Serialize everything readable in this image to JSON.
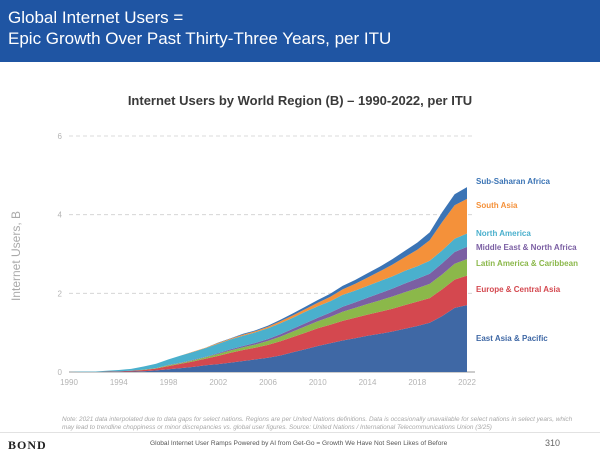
{
  "header": {
    "title_line1": "Global Internet Users =",
    "title_line2": "Epic Growth Over Past Thirty-Three Years, per ITU",
    "bg_color": "#1f55a3"
  },
  "chart_data": {
    "type": "area",
    "stacked": true,
    "title": "Internet Users by World Region (B) – 1990-2022, per ITU",
    "ylabel": "Internet Users, B",
    "xlabel": "",
    "ylim": [
      0,
      6
    ],
    "yticks": [
      0,
      2,
      4,
      6
    ],
    "xticks": [
      1990,
      1994,
      1998,
      2002,
      2006,
      2010,
      2014,
      2018,
      2022
    ],
    "grid": "horizontal dashed",
    "legend": "right, labels at series ends",
    "x": [
      1990,
      1991,
      1992,
      1993,
      1994,
      1995,
      1996,
      1997,
      1998,
      1999,
      2000,
      2001,
      2002,
      2003,
      2004,
      2005,
      2006,
      2007,
      2008,
      2009,
      2010,
      2011,
      2012,
      2013,
      2014,
      2015,
      2016,
      2017,
      2018,
      2019,
      2020,
      2021,
      2022
    ],
    "series": [
      {
        "name": "East Asia & Pacific",
        "color": "#3f68a5",
        "values": [
          0,
          0,
          0,
          0,
          0.01,
          0.01,
          0.02,
          0.04,
          0.07,
          0.1,
          0.13,
          0.17,
          0.2,
          0.24,
          0.28,
          0.32,
          0.36,
          0.42,
          0.5,
          0.58,
          0.66,
          0.73,
          0.8,
          0.86,
          0.92,
          0.97,
          1.03,
          1.1,
          1.17,
          1.25,
          1.42,
          1.63,
          1.7
        ]
      },
      {
        "name": "Europe & Central Asia",
        "color": "#d4484f",
        "values": [
          0,
          0,
          0,
          0.01,
          0.01,
          0.02,
          0.03,
          0.05,
          0.08,
          0.11,
          0.14,
          0.17,
          0.21,
          0.25,
          0.28,
          0.3,
          0.33,
          0.36,
          0.39,
          0.42,
          0.45,
          0.47,
          0.5,
          0.52,
          0.54,
          0.56,
          0.58,
          0.6,
          0.62,
          0.63,
          0.68,
          0.72,
          0.75
        ]
      },
      {
        "name": "Latin America & Caribbean",
        "color": "#8bb84a",
        "values": [
          0,
          0,
          0,
          0,
          0,
          0,
          0.01,
          0.01,
          0.02,
          0.02,
          0.03,
          0.04,
          0.05,
          0.06,
          0.07,
          0.08,
          0.1,
          0.12,
          0.14,
          0.16,
          0.18,
          0.2,
          0.23,
          0.25,
          0.27,
          0.29,
          0.31,
          0.33,
          0.34,
          0.36,
          0.38,
          0.4,
          0.42
        ]
      },
      {
        "name": "Middle East & North Africa",
        "color": "#7b5fa3",
        "values": [
          0,
          0,
          0,
          0,
          0,
          0,
          0,
          0,
          0.01,
          0.01,
          0.01,
          0.01,
          0.02,
          0.03,
          0.03,
          0.04,
          0.05,
          0.06,
          0.07,
          0.08,
          0.09,
          0.11,
          0.13,
          0.14,
          0.16,
          0.18,
          0.2,
          0.22,
          0.24,
          0.26,
          0.28,
          0.3,
          0.31
        ]
      },
      {
        "name": "North America",
        "color": "#4ab0cd",
        "values": [
          0,
          0.01,
          0.01,
          0.02,
          0.03,
          0.05,
          0.08,
          0.11,
          0.14,
          0.18,
          0.2,
          0.22,
          0.24,
          0.25,
          0.26,
          0.27,
          0.27,
          0.28,
          0.28,
          0.29,
          0.29,
          0.29,
          0.3,
          0.3,
          0.3,
          0.31,
          0.31,
          0.32,
          0.32,
          0.33,
          0.33,
          0.34,
          0.34
        ]
      },
      {
        "name": "South Asia",
        "color": "#f4913a",
        "values": [
          0,
          0,
          0,
          0,
          0,
          0,
          0,
          0,
          0,
          0,
          0.01,
          0.01,
          0.02,
          0.02,
          0.03,
          0.03,
          0.04,
          0.05,
          0.06,
          0.07,
          0.09,
          0.11,
          0.14,
          0.17,
          0.21,
          0.25,
          0.3,
          0.35,
          0.42,
          0.52,
          0.72,
          0.85,
          0.88
        ]
      },
      {
        "name": "Sub-Saharan Africa",
        "color": "#3b74b5",
        "values": [
          0,
          0,
          0,
          0,
          0,
          0,
          0,
          0,
          0,
          0,
          0,
          0,
          0.01,
          0.01,
          0.02,
          0.02,
          0.03,
          0.04,
          0.05,
          0.06,
          0.07,
          0.08,
          0.09,
          0.1,
          0.11,
          0.12,
          0.14,
          0.16,
          0.18,
          0.2,
          0.25,
          0.28,
          0.3
        ]
      }
    ]
  },
  "note": "Note: 2021 data interpolated due to data gaps for select nations. Regions are per United Nations definitions. Data is occasionally unavailable for select nations in select years, which may lead to trendline choppiness or minor discrepancies vs. global user figures. Source: United Nations / International Telecommunications Union (3/25)",
  "footer": {
    "brand": "BOND",
    "text": "Global Internet User Ramps Powered by AI from Get-Go = Growth We Have Not Seen Likes of Before",
    "page": "310"
  }
}
